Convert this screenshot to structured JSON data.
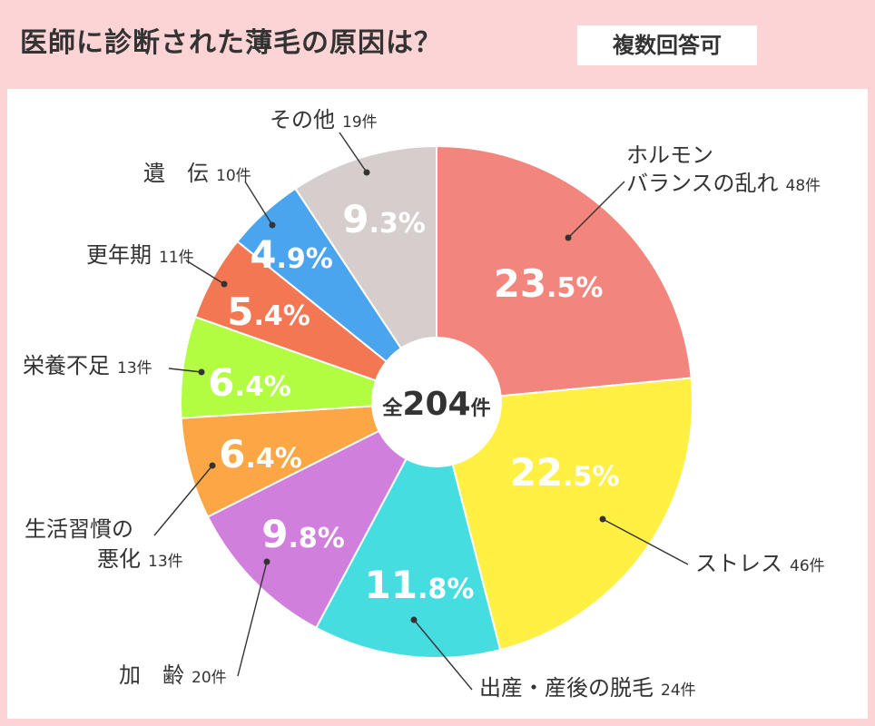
{
  "header": {
    "title": "医師に診断された薄毛の原因は？",
    "badge": "複数回答可"
  },
  "center": {
    "prefix": "全",
    "number": "204",
    "suffix": "件"
  },
  "chart_data": {
    "type": "pie",
    "total": 204,
    "unit": "件",
    "slices": [
      {
        "name_lines": [
          "ホルモン",
          "バランスの乱れ"
        ],
        "count": 48,
        "count_label": "48件",
        "percent": 23.5,
        "pct_int": "23",
        "pct_dec": ".5%",
        "color": "#f2867d"
      },
      {
        "name_lines": [
          "ストレス"
        ],
        "count": 46,
        "count_label": "46件",
        "percent": 22.5,
        "pct_int": "22",
        "pct_dec": ".5%",
        "color": "#fff043"
      },
      {
        "name_lines": [
          "出産・産後の脱毛"
        ],
        "count": 24,
        "count_label": "24件",
        "percent": 11.8,
        "pct_int": "11",
        "pct_dec": ".8%",
        "color": "#45dde0"
      },
      {
        "name_lines": [
          "加　齢"
        ],
        "count": 20,
        "count_label": "20件",
        "percent": 9.8,
        "pct_int": "9",
        "pct_dec": ".8%",
        "color": "#d17fdc"
      },
      {
        "name_lines": [
          "生活習慣の",
          "悪化"
        ],
        "count": 13,
        "count_label": "13件",
        "percent": 6.4,
        "pct_int": "6",
        "pct_dec": ".4%",
        "color": "#fca645"
      },
      {
        "name_lines": [
          "栄養不足"
        ],
        "count": 13,
        "count_label": "13件",
        "percent": 6.4,
        "pct_int": "6",
        "pct_dec": ".4%",
        "color": "#b2fc41"
      },
      {
        "name_lines": [
          "更年期"
        ],
        "count": 11,
        "count_label": "11件",
        "percent": 5.4,
        "pct_int": "5",
        "pct_dec": ".4%",
        "color": "#f47753"
      },
      {
        "name_lines": [
          "遺　伝"
        ],
        "count": 10,
        "count_label": "10件",
        "percent": 4.9,
        "pct_int": "4",
        "pct_dec": ".9%",
        "color": "#4ba4ee"
      },
      {
        "name_lines": [
          "その他"
        ],
        "count": 19,
        "count_label": "19件",
        "percent": 9.3,
        "pct_int": "9",
        "pct_dec": ".3%",
        "color": "#d6cecc"
      }
    ]
  }
}
